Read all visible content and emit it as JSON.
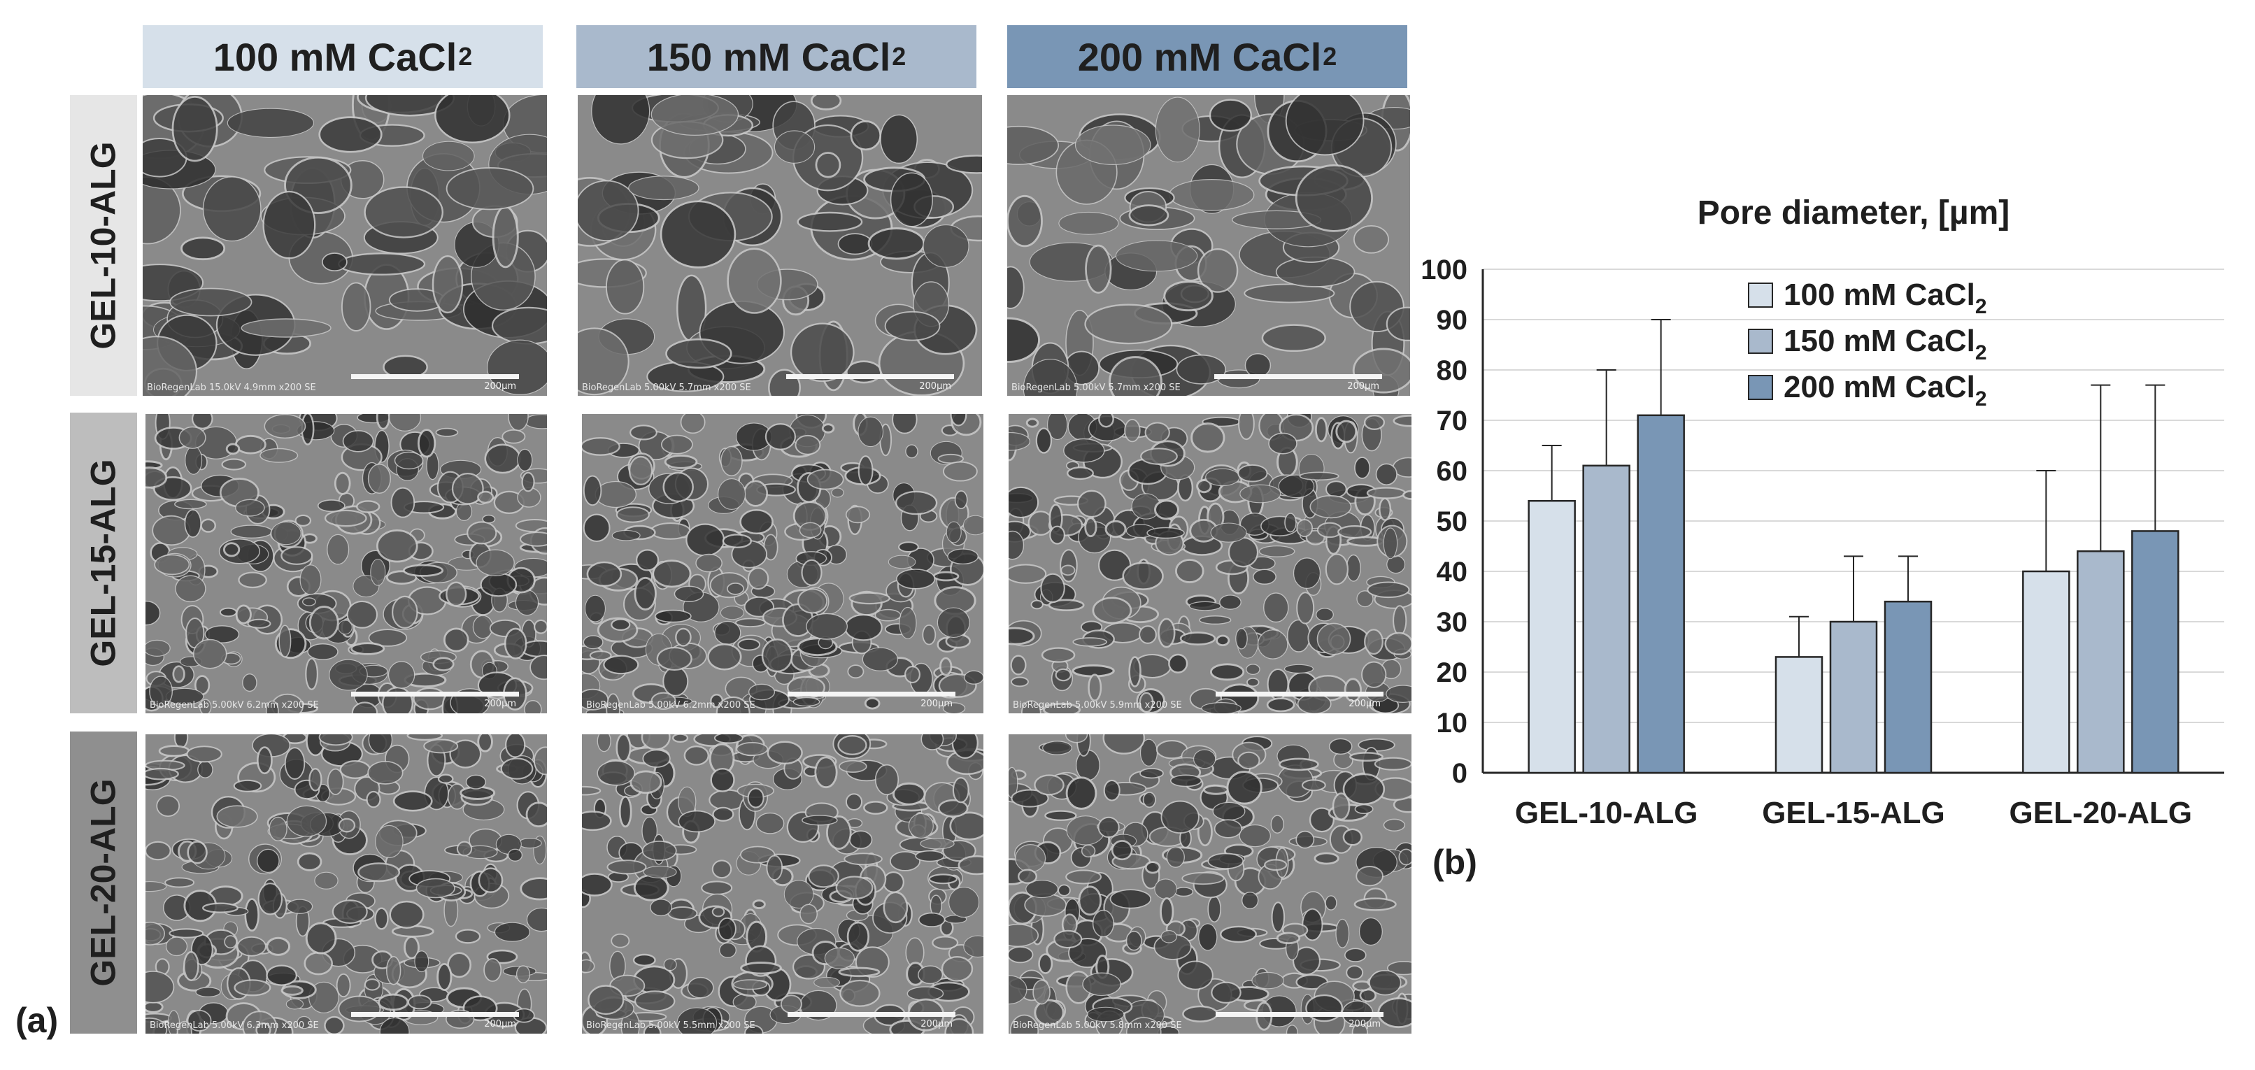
{
  "figure": {
    "column_headers": [
      {
        "main": "100 mM CaCl",
        "sub": "2",
        "color": "#d6e0ea"
      },
      {
        "main": "150 mM CaCl",
        "sub": "2",
        "color": "#a9b9cc"
      },
      {
        "main": "200 mM CaCl",
        "sub": "2",
        "color": "#7996b5"
      }
    ],
    "row_headers": [
      {
        "label": "GEL-10-ALG",
        "color": "#e6e6e6"
      },
      {
        "label": "GEL-15-ALG",
        "color": "#bdbdbd"
      },
      {
        "label": "GEL-20-ALG",
        "color": "#8f8f8f"
      }
    ],
    "sem_images": [
      {
        "meta": "BioRegenLab 15.0kV 4.9mm x200 SE",
        "scale": "200µm"
      },
      {
        "meta": "BioRegenLab 5.00kV 5.7mm x200 SE",
        "scale": "200µm"
      },
      {
        "meta": "BioRegenLab 5.00kV 5.7mm x200 SE",
        "scale": "200µm"
      },
      {
        "meta": "BioRegenLab 5.00kV 6.2mm x200 SE",
        "scale": "200µm"
      },
      {
        "meta": "BioRegenLab 5.00kV 6.2mm x200 SE",
        "scale": "200µm"
      },
      {
        "meta": "BioRegenLab 5.00kV 5.9mm x200 SE",
        "scale": "200µm"
      },
      {
        "meta": "BioRegenLab 5.00kV 6.3mm x200 SE",
        "scale": "200µm"
      },
      {
        "meta": "BioRegenLab 5.00kV 5.5mm x200 SE",
        "scale": "200µm"
      },
      {
        "meta": "BioRegenLab 5.00kV 5.8mm x200 SE",
        "scale": "200µm"
      }
    ],
    "panel_a_label": "(a)",
    "panel_b_label": "(b)"
  },
  "chart_data": {
    "type": "bar",
    "title": "Pore diameter, [µm]",
    "categories": [
      "GEL-10-ALG",
      "GEL-15-ALG",
      "GEL-20-ALG"
    ],
    "series": [
      {
        "name": "100 mM CaCl",
        "name_sub": "2",
        "color": "#d6e0ea",
        "values": [
          54,
          23,
          40
        ],
        "error_upper": [
          65,
          31,
          60
        ]
      },
      {
        "name": "150 mM CaCl",
        "name_sub": "2",
        "color": "#a9b9cc",
        "values": [
          61,
          30,
          44
        ],
        "error_upper": [
          80,
          43,
          77
        ]
      },
      {
        "name": "200 mM CaCl",
        "name_sub": "2",
        "color": "#7996b5",
        "values": [
          71,
          34,
          48
        ],
        "error_upper": [
          90,
          43,
          77
        ]
      }
    ],
    "ylim": [
      0,
      100
    ],
    "yticks": [
      0,
      10,
      20,
      30,
      40,
      50,
      60,
      70,
      80,
      90,
      100
    ],
    "grid": true,
    "legend_position": "top-center"
  }
}
